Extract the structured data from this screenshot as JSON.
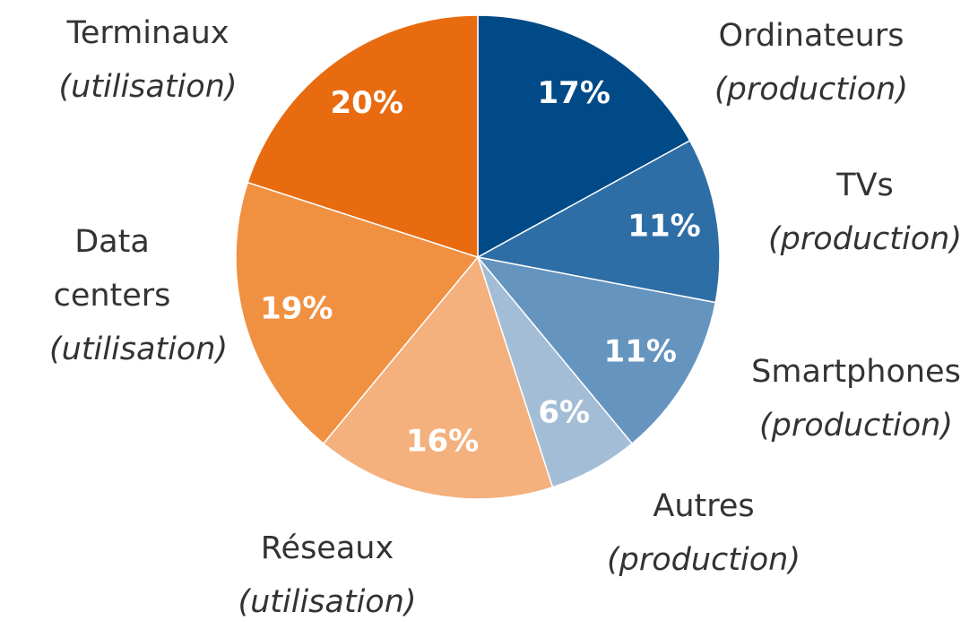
{
  "chart_data": {
    "type": "pie",
    "categories": [
      "Ordinateurs",
      "TVs",
      "Smartphones",
      "Autres",
      "Réseaux",
      "Data centers",
      "Terminaux"
    ],
    "category_notes": [
      "(production)",
      "(production)",
      "(production)",
      "(production)",
      "(utilisation)",
      "(utilisation)",
      "(utilisation)"
    ],
    "values": [
      17,
      11,
      11,
      6,
      16,
      19,
      20
    ],
    "value_labels": [
      "17%",
      "11%",
      "11%",
      "6%",
      "16%",
      "19%",
      "20%"
    ],
    "colors": [
      "#004a87",
      "#2e6ea6",
      "#6594bf",
      "#a3bdd6",
      "#f4b07d",
      "#f09142",
      "#e86b10"
    ]
  }
}
